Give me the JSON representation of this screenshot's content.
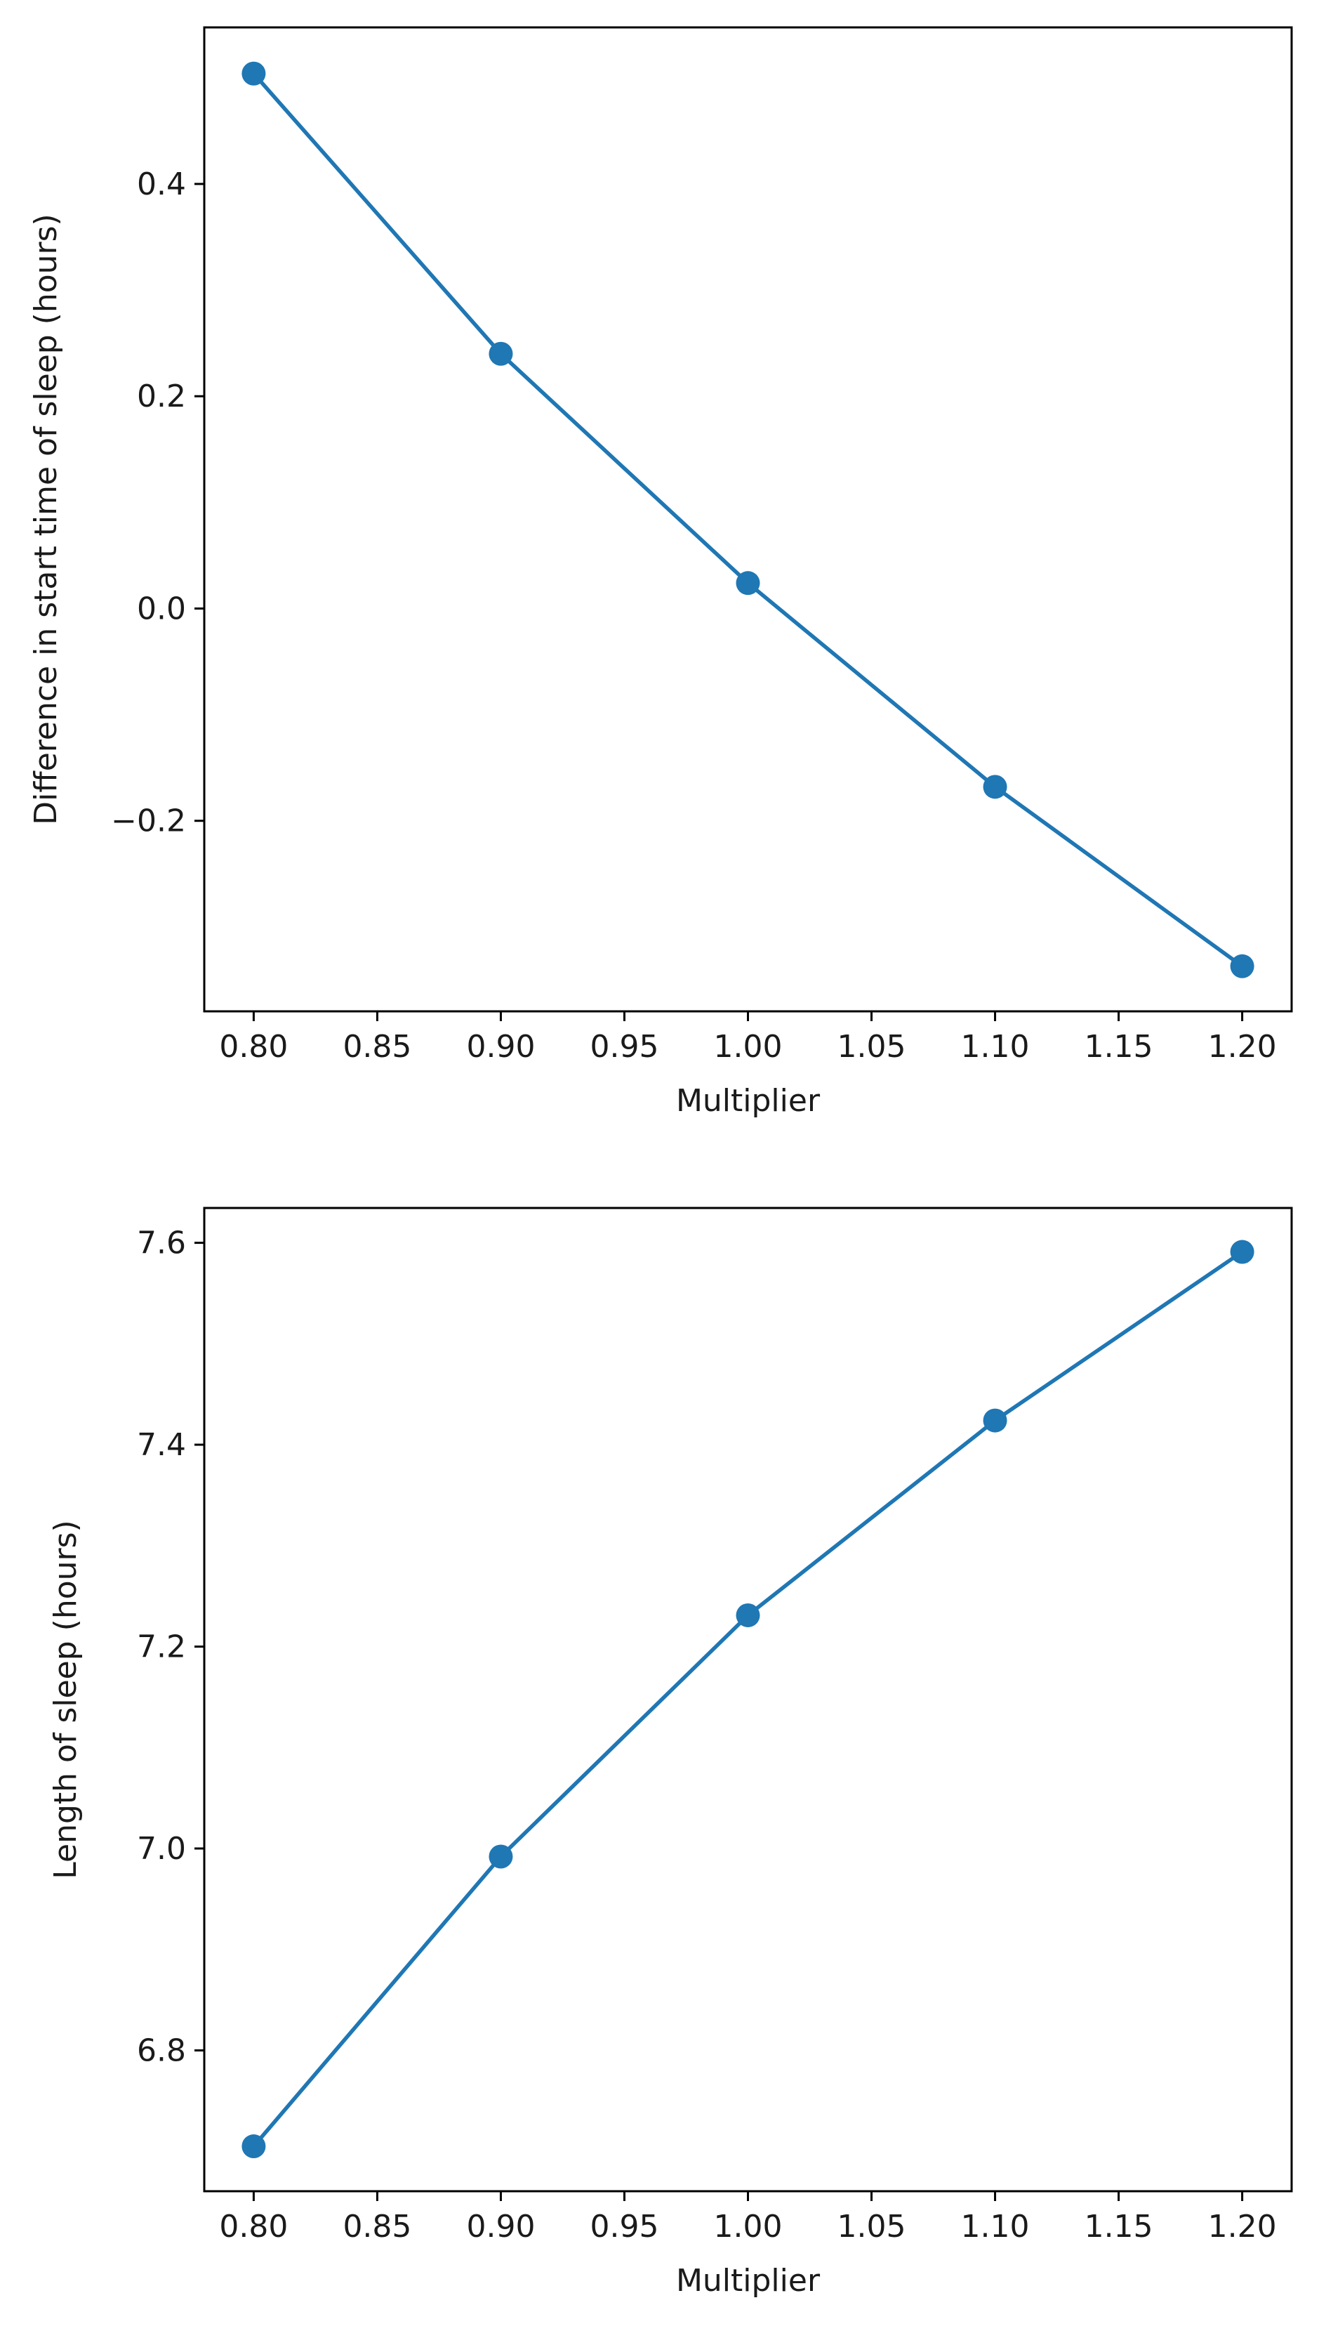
{
  "chart_data": [
    {
      "type": "line",
      "title": "",
      "xlabel": "Multiplier",
      "ylabel": "Difference in start time of sleep (hours)",
      "xlim": [
        0.78,
        1.22
      ],
      "ylim": [
        -0.3795,
        0.5475
      ],
      "x_ticks": [
        0.8,
        0.85,
        0.9,
        0.95,
        1.0,
        1.05,
        1.1,
        1.15,
        1.2
      ],
      "x_tick_labels": [
        "0.80",
        "0.85",
        "0.90",
        "0.95",
        "1.00",
        "1.05",
        "1.10",
        "1.15",
        "1.20"
      ],
      "y_ticks": [
        -0.2,
        0.0,
        0.2,
        0.4
      ],
      "y_tick_labels": [
        "−0.2",
        "0.0",
        "0.2",
        "0.4"
      ],
      "grid": false,
      "series": [
        {
          "color": "#1f77b4",
          "marker": "circle",
          "x": [
            0.8,
            0.9,
            1.0,
            1.1,
            1.2
          ],
          "y": [
            0.504,
            0.24,
            0.024,
            -0.168,
            -0.337
          ]
        }
      ]
    },
    {
      "type": "line",
      "title": "",
      "xlabel": "Multiplier",
      "ylabel": "Length of sleep (hours)",
      "xlim": [
        0.78,
        1.22
      ],
      "ylim": [
        6.6605,
        7.6345
      ],
      "x_ticks": [
        0.8,
        0.85,
        0.9,
        0.95,
        1.0,
        1.05,
        1.1,
        1.15,
        1.2
      ],
      "x_tick_labels": [
        "0.80",
        "0.85",
        "0.90",
        "0.95",
        "1.00",
        "1.05",
        "1.10",
        "1.15",
        "1.20"
      ],
      "y_ticks": [
        6.8,
        7.0,
        7.2,
        7.4,
        7.6
      ],
      "y_tick_labels": [
        "6.8",
        "7.0",
        "7.2",
        "7.4",
        "7.6"
      ],
      "grid": false,
      "series": [
        {
          "color": "#1f77b4",
          "marker": "circle",
          "x": [
            0.8,
            0.9,
            1.0,
            1.1,
            1.2
          ],
          "y": [
            6.705,
            6.992,
            7.231,
            7.424,
            7.591
          ]
        }
      ]
    }
  ]
}
